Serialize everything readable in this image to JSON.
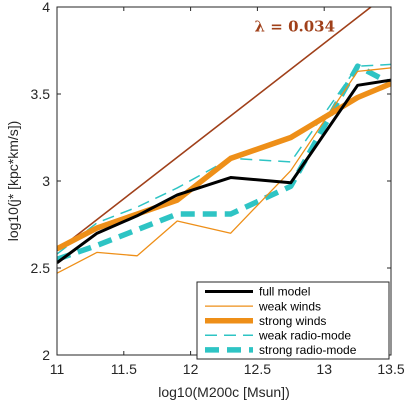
{
  "chart_data": {
    "type": "line",
    "xlabel": "log10(M200c [Msun])",
    "ylabel": "log10(j* [kpc*km/s])",
    "xlim": [
      11,
      13.5
    ],
    "ylim": [
      2,
      4
    ],
    "xticks": [
      11,
      11.5,
      12,
      12.5,
      13,
      13.5
    ],
    "yticks": [
      2,
      2.5,
      3,
      3.5,
      4
    ],
    "xtick_labels": [
      "11",
      "11.5",
      "12",
      "12.5",
      "13",
      "13.5"
    ],
    "ytick_labels": [
      "2",
      "2.5",
      "3",
      "3.5",
      "4"
    ],
    "grid": false,
    "legend_position": "bottom-right",
    "annotation": {
      "text": "λ = 0.034",
      "color": "#a0401a",
      "x": 12.78,
      "y": 3.86
    },
    "reference_line": {
      "color": "#a0401a",
      "x": [
        11,
        13.35
      ],
      "y": [
        2.6,
        4.0
      ]
    },
    "series": [
      {
        "name": "strong radio-mode",
        "color": "#2ec4c4",
        "style": "thickdash",
        "x": [
          11,
          11.3,
          11.6,
          11.9,
          12.3,
          12.75,
          13.25,
          13.5
        ],
        "y": [
          2.55,
          2.63,
          2.72,
          2.81,
          2.81,
          2.97,
          3.66,
          3.56
        ]
      },
      {
        "name": "weak radio-mode",
        "color": "#2ec4c4",
        "style": "thindash",
        "x": [
          11,
          11.3,
          11.6,
          11.9,
          12.3,
          12.75,
          13.25,
          13.5
        ],
        "y": [
          2.58,
          2.76,
          2.85,
          2.96,
          3.13,
          3.11,
          3.66,
          3.67
        ]
      },
      {
        "name": "weak winds",
        "color": "#ee8f18",
        "style": "thin",
        "x": [
          11,
          11.3,
          11.6,
          11.9,
          12.3,
          12.75,
          13.25,
          13.5
        ],
        "y": [
          2.47,
          2.59,
          2.57,
          2.77,
          2.7,
          3.06,
          3.63,
          3.65
        ]
      },
      {
        "name": "strong winds",
        "color": "#ee8f18",
        "style": "thick",
        "x": [
          11,
          11.3,
          11.6,
          11.9,
          12.3,
          12.75,
          13.25,
          13.5
        ],
        "y": [
          2.61,
          2.73,
          2.81,
          2.89,
          3.13,
          3.25,
          3.48,
          3.56
        ]
      },
      {
        "name": "full model",
        "color": "#000000",
        "style": "medium",
        "x": [
          11,
          11.3,
          11.6,
          11.9,
          12.3,
          12.75,
          13.25,
          13.5
        ],
        "y": [
          2.53,
          2.7,
          2.8,
          2.92,
          3.02,
          2.99,
          3.55,
          3.58
        ]
      }
    ],
    "legend_order": [
      "full model",
      "weak winds",
      "strong winds",
      "weak radio-mode",
      "strong radio-mode"
    ]
  }
}
